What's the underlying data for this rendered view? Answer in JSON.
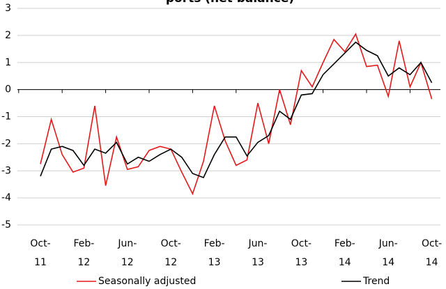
{
  "chart_data": {
    "type": "line",
    "title": "ports (net balance)",
    "categories": [
      "Oct-11",
      null,
      null,
      null,
      "Feb-12",
      null,
      null,
      null,
      "Jun-12",
      null,
      null,
      null,
      "Oct-12",
      null,
      null,
      null,
      "Feb-13",
      null,
      null,
      null,
      "Jun-13",
      null,
      null,
      null,
      "Oct-13",
      null,
      null,
      null,
      "Feb-14",
      null,
      null,
      null,
      "Jun-14",
      null,
      null,
      null,
      "Oct-14"
    ],
    "series": [
      {
        "name": "Seasonally adjusted",
        "color": "#e31a1c",
        "values": [
          -2.75,
          -1.1,
          -2.4,
          -3.05,
          -2.9,
          -0.6,
          -3.55,
          -1.75,
          -2.95,
          -2.85,
          -2.25,
          -2.1,
          -2.2,
          -3.05,
          -3.85,
          -2.65,
          -0.6,
          -1.9,
          -2.8,
          -2.6,
          -0.5,
          -2.0,
          0.0,
          -1.3,
          0.7,
          0.1,
          1.0,
          1.85,
          1.4,
          2.05,
          0.85,
          0.9,
          -0.25,
          1.8,
          0.1,
          1.0,
          -0.35
        ]
      },
      {
        "name": "Trend",
        "color": "#000000",
        "values": [
          -3.2,
          -2.2,
          -2.1,
          -2.25,
          -2.8,
          -2.2,
          -2.35,
          -1.95,
          -2.75,
          -2.5,
          -2.65,
          -2.4,
          -2.2,
          -2.5,
          -3.1,
          -3.25,
          -2.4,
          -1.75,
          -1.75,
          -2.45,
          -1.95,
          -1.7,
          -0.8,
          -1.1,
          -0.2,
          -0.15,
          0.55,
          0.95,
          1.35,
          1.75,
          1.45,
          1.25,
          0.5,
          0.8,
          0.55,
          1.0,
          0.25
        ]
      }
    ],
    "ylim": [
      -5,
      3
    ],
    "yticks": [
      -5,
      -4,
      -3,
      -2,
      -1,
      0,
      1,
      2,
      3
    ],
    "grid": true
  }
}
